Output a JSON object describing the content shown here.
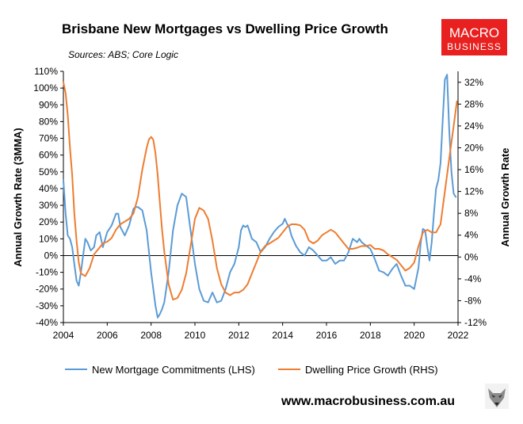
{
  "colors": {
    "lhs_series": "#5b9bd5",
    "rhs_series": "#ed7d31",
    "logo_bg": "#e8201f",
    "axis": "#000000"
  },
  "brand": {
    "logo_line1": "MACRO",
    "logo_line2": "BUSINESS",
    "url": "www.macrobusiness.com.au",
    "wolf_icon": "wolf-icon"
  },
  "chart_data": {
    "type": "line",
    "title": "Brisbane New Mortgages vs Dwelling Price Growth",
    "subtitle": "Sources: ABS; Core Logic",
    "ylabel_left": "Annual Growth Rate (3MMA)",
    "ylabel_right": "Annual Growth Rate",
    "xlim": [
      2004,
      2022
    ],
    "ylim_left": [
      -40,
      110
    ],
    "ylim_right": [
      -12,
      34
    ],
    "x_ticks": [
      "2004",
      "2006",
      "2008",
      "2010",
      "2012",
      "2014",
      "2016",
      "2018",
      "2020",
      "2022"
    ],
    "y_left_ticks": [
      "110%",
      "100%",
      "90%",
      "80%",
      "70%",
      "60%",
      "50%",
      "40%",
      "30%",
      "20%",
      "10%",
      "0%",
      "-10%",
      "-20%",
      "-30%",
      "-40%"
    ],
    "y_right_ticks": [
      "32%",
      "28%",
      "24%",
      "20%",
      "16%",
      "12%",
      "8%",
      "4%",
      "0%",
      "-4%",
      "-8%",
      "-12%"
    ],
    "legend_position": "bottom",
    "series": [
      {
        "name": "New Mortgage Commitments (LHS)",
        "axis": "left",
        "x": [
          2004.0,
          2004.1,
          2004.2,
          2004.3,
          2004.4,
          2004.5,
          2004.6,
          2004.7,
          2004.8,
          2005.0,
          2005.1,
          2005.25,
          2005.4,
          2005.5,
          2005.65,
          2005.8,
          2006.0,
          2006.2,
          2006.4,
          2006.5,
          2006.6,
          2006.8,
          2007.0,
          2007.2,
          2007.3,
          2007.4,
          2007.5,
          2007.6,
          2007.8,
          2008.0,
          2008.2,
          2008.3,
          2008.4,
          2008.5,
          2008.6,
          2008.8,
          2009.0,
          2009.2,
          2009.4,
          2009.6,
          2009.8,
          2010.0,
          2010.2,
          2010.4,
          2010.6,
          2010.8,
          2011.0,
          2011.2,
          2011.4,
          2011.6,
          2011.8,
          2012.0,
          2012.1,
          2012.2,
          2012.3,
          2012.4,
          2012.5,
          2012.6,
          2012.8,
          2013.0,
          2013.2,
          2013.4,
          2013.6,
          2013.8,
          2014.0,
          2014.1,
          2014.2,
          2014.3,
          2014.4,
          2014.6,
          2014.8,
          2015.0,
          2015.2,
          2015.4,
          2015.6,
          2015.8,
          2016.0,
          2016.2,
          2016.4,
          2016.6,
          2016.8,
          2017.0,
          2017.2,
          2017.4,
          2017.5,
          2017.6,
          2017.8,
          2018.0,
          2018.2,
          2018.4,
          2018.6,
          2018.8,
          2019.0,
          2019.2,
          2019.4,
          2019.6,
          2019.8,
          2020.0,
          2020.2,
          2020.3,
          2020.4,
          2020.5,
          2020.6,
          2020.7,
          2020.8,
          2020.9,
          2021.0,
          2021.1,
          2021.2,
          2021.3,
          2021.4,
          2021.5,
          2021.6,
          2021.7,
          2021.8,
          2021.9
        ],
        "values": [
          45,
          25,
          12,
          10,
          5,
          -5,
          -15,
          -18,
          -10,
          10,
          8,
          3,
          5,
          12,
          14,
          5,
          14,
          18,
          25,
          25,
          17,
          12,
          18,
          28,
          29,
          29,
          28,
          27,
          15,
          -10,
          -30,
          -37,
          -35,
          -32,
          -28,
          -10,
          15,
          30,
          37,
          35,
          15,
          -5,
          -20,
          -27,
          -28,
          -22,
          -28,
          -27,
          -20,
          -10,
          -5,
          5,
          15,
          18,
          17,
          18,
          14,
          10,
          8,
          2,
          5,
          10,
          14,
          17,
          19,
          22,
          19,
          17,
          12,
          6,
          2,
          0,
          5,
          3,
          0,
          -3,
          -3,
          -1,
          -5,
          -3,
          -3,
          2,
          10,
          8,
          10,
          8,
          6,
          4,
          -2,
          -9,
          -10,
          -12,
          -8,
          -5,
          -12,
          -18,
          -18,
          -20,
          -7,
          8,
          16,
          15,
          5,
          -3,
          8,
          25,
          40,
          45,
          55,
          80,
          105,
          108,
          75,
          50,
          37,
          35
        ]
      },
      {
        "name": "Dwelling Price Growth (RHS)",
        "axis": "right",
        "x": [
          2004.0,
          2004.1,
          2004.2,
          2004.3,
          2004.4,
          2004.5,
          2004.6,
          2004.7,
          2004.8,
          2005.0,
          2005.2,
          2005.4,
          2005.6,
          2005.8,
          2006.0,
          2006.2,
          2006.4,
          2006.6,
          2006.8,
          2007.0,
          2007.2,
          2007.4,
          2007.6,
          2007.8,
          2007.9,
          2008.0,
          2008.1,
          2008.2,
          2008.3,
          2008.4,
          2008.5,
          2008.6,
          2008.8,
          2009.0,
          2009.2,
          2009.4,
          2009.6,
          2009.8,
          2010.0,
          2010.2,
          2010.4,
          2010.6,
          2010.8,
          2011.0,
          2011.2,
          2011.4,
          2011.6,
          2011.8,
          2012.0,
          2012.2,
          2012.4,
          2012.6,
          2012.8,
          2013.0,
          2013.2,
          2013.4,
          2013.6,
          2013.8,
          2014.0,
          2014.2,
          2014.4,
          2014.6,
          2014.8,
          2015.0,
          2015.2,
          2015.4,
          2015.6,
          2015.8,
          2016.0,
          2016.2,
          2016.4,
          2016.6,
          2016.8,
          2017.0,
          2017.2,
          2017.4,
          2017.6,
          2017.8,
          2018.0,
          2018.2,
          2018.4,
          2018.6,
          2018.8,
          2019.0,
          2019.2,
          2019.4,
          2019.6,
          2019.8,
          2020.0,
          2020.2,
          2020.4,
          2020.6,
          2020.8,
          2021.0,
          2021.2,
          2021.4,
          2021.6,
          2021.8,
          2021.95
        ],
        "values": [
          32,
          30,
          26,
          20,
          15,
          8,
          3,
          -1,
          -3,
          -3.5,
          -2,
          0.5,
          1.5,
          2.5,
          2.8,
          3.5,
          5,
          6,
          6.5,
          7,
          8,
          11,
          16,
          20,
          21.5,
          22,
          21.5,
          19,
          15,
          10,
          5,
          1,
          -5,
          -7.8,
          -7.5,
          -6,
          -3,
          2,
          7,
          9,
          8.5,
          7,
          3,
          -2,
          -5,
          -6.5,
          -7,
          -6.5,
          -6.5,
          -6,
          -5,
          -3,
          -1,
          1,
          2,
          2.5,
          3,
          3.5,
          4.5,
          5.5,
          6,
          6,
          5.8,
          5,
          3,
          2.5,
          3,
          4,
          4.5,
          5,
          4.5,
          3.5,
          2.5,
          1.5,
          1.5,
          1.7,
          2,
          2,
          2.2,
          1.5,
          1.5,
          1.2,
          0.5,
          0,
          -0.5,
          -1.5,
          -2.5,
          -2,
          -1,
          2,
          4.5,
          5,
          4.5,
          4.5,
          6,
          12,
          18,
          24,
          28.5
        ]
      }
    ]
  }
}
